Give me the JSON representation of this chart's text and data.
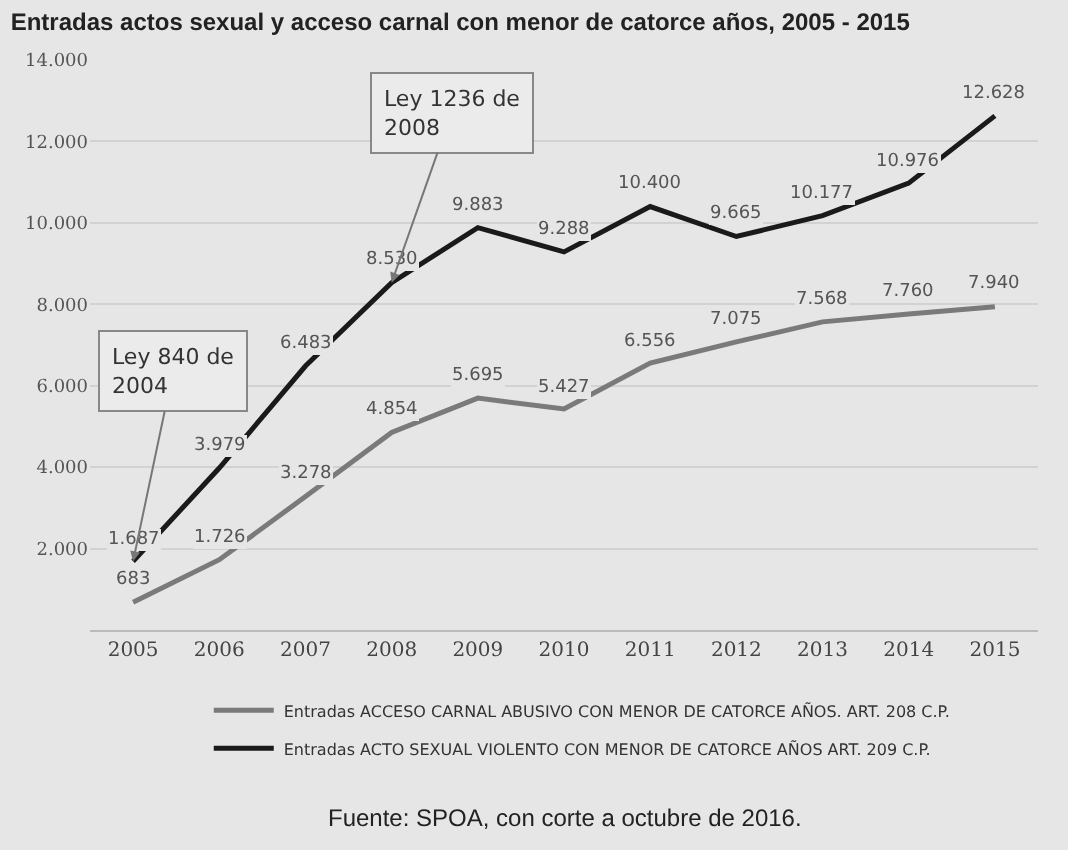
{
  "chart_data": {
    "type": "line",
    "title": "Entradas actos sexual y acceso carnal con menor de catorce años, 2005 - 2015",
    "categories": [
      "2005",
      "2006",
      "2007",
      "2008",
      "2009",
      "2010",
      "2011",
      "2012",
      "2013",
      "2014",
      "2015"
    ],
    "series": [
      {
        "name": "Entradas ACCESO CARNAL ABUSIVO CON MENOR DE CATORCE AÑOS. ART. 208 C.P.",
        "color": "#7a7a7a",
        "values": [
          683,
          1726,
          3278,
          4854,
          5695,
          5427,
          6556,
          7075,
          7568,
          7760,
          7940
        ],
        "value_labels": [
          "683",
          "1.726",
          "3.278",
          "4.854",
          "5.695",
          "5.427",
          "6.556",
          "7.075",
          "7.568",
          "7.760",
          "7.940"
        ]
      },
      {
        "name": "Entradas ACTO SEXUAL VIOLENTO CON MENOR DE CATORCE AÑOS ART. 209 C.P.",
        "color": "#1a1a1a",
        "values": [
          1687,
          3979,
          6483,
          8530,
          9883,
          9288,
          10400,
          9665,
          10177,
          10976,
          12628
        ],
        "value_labels": [
          "1.687",
          "3.979",
          "6.483",
          "8.530",
          "9.883",
          "9.288",
          "10.400",
          "9.665",
          "10.177",
          "10.976",
          "12.628"
        ]
      }
    ],
    "ylim": [
      0,
      14000
    ],
    "yticks": [
      {
        "value": 2000,
        "label": "2.000"
      },
      {
        "value": 4000,
        "label": "4.000"
      },
      {
        "value": 6000,
        "label": "6.000"
      },
      {
        "value": 8000,
        "label": "8.000"
      },
      {
        "value": 10000,
        "label": "10.000"
      },
      {
        "value": 12000,
        "label": "12.000"
      },
      {
        "value": 14000,
        "label": "14.000"
      }
    ],
    "grid": "y",
    "legend": "bottom",
    "marker": "none",
    "line_style": "solid",
    "annotations": [
      {
        "text": "Ley 840 de\n2004",
        "x": "2005",
        "y": 1687
      },
      {
        "text": "Ley 1236 de\n2008",
        "x": "2008",
        "y": 8530
      },
      "Fuente: SPOA, con corte a octubre de 2016."
    ]
  }
}
